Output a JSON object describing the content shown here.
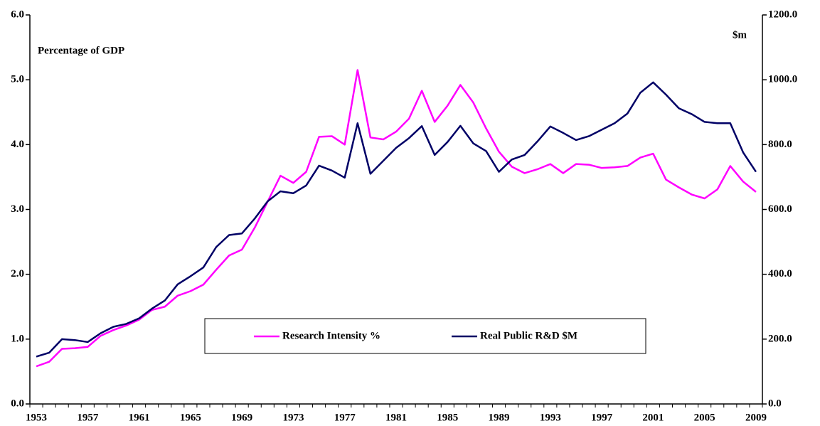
{
  "chart_data": {
    "type": "line",
    "left_axis_label": "Percentage of GDP",
    "right_axis_label": "$m",
    "categories": [
      "1953",
      null,
      null,
      null,
      "1957",
      null,
      null,
      null,
      "1961",
      null,
      null,
      null,
      "1965",
      null,
      null,
      null,
      "1969",
      null,
      null,
      null,
      "1973",
      null,
      null,
      null,
      "1977",
      null,
      null,
      null,
      "1981",
      null,
      null,
      null,
      "1985",
      null,
      null,
      null,
      "1989",
      null,
      null,
      null,
      "1993",
      null,
      null,
      null,
      "1997",
      null,
      null,
      null,
      "2001",
      null,
      null,
      null,
      "2005",
      null,
      null,
      null,
      "2009"
    ],
    "ylim": [
      0,
      6
    ],
    "yticks": [
      {
        "value": 0,
        "label": "0.0"
      },
      {
        "value": 1,
        "label": "1.0"
      },
      {
        "value": 2,
        "label": "2.0"
      },
      {
        "value": 3,
        "label": "3.0"
      },
      {
        "value": 4,
        "label": "4.0"
      },
      {
        "value": 5,
        "label": "5.0"
      },
      {
        "value": 6,
        "label": "6.0"
      }
    ],
    "y2lim": [
      0,
      1200
    ],
    "y2ticks": [
      {
        "value": 0,
        "label": "0.0"
      },
      {
        "value": 200,
        "label": "200.0"
      },
      {
        "value": 400,
        "label": "400.0"
      },
      {
        "value": 600,
        "label": "600.0"
      },
      {
        "value": 800,
        "label": "800.0"
      },
      {
        "value": 1000,
        "label": "1000.0"
      },
      {
        "value": 1200,
        "label": "1200.0"
      }
    ],
    "series": [
      {
        "name": "Research Intensity %",
        "color": "#ff00ff",
        "axis": "y",
        "values": [
          0.58,
          0.65,
          0.85,
          0.86,
          0.88,
          1.05,
          1.14,
          1.21,
          1.3,
          1.45,
          1.5,
          1.67,
          1.74,
          1.84,
          2.07,
          2.29,
          2.38,
          2.72,
          3.12,
          3.52,
          3.41,
          3.58,
          4.12,
          4.13,
          4.0,
          5.15,
          4.11,
          4.08,
          4.2,
          4.4,
          4.83,
          4.35,
          4.6,
          4.92,
          4.65,
          4.25,
          3.89,
          3.66,
          3.56,
          3.62,
          3.7,
          3.56,
          3.7,
          3.69,
          3.64,
          3.65,
          3.67,
          3.8,
          3.86,
          3.46,
          3.34,
          3.23,
          3.17,
          3.31,
          3.67,
          3.43,
          3.27
        ]
      },
      {
        "name": "Real Public R&D $M",
        "color": "#000066",
        "axis": "y2",
        "values": [
          146,
          158,
          200,
          197,
          191,
          218,
          238,
          247,
          264,
          294,
          319,
          369,
          394,
          421,
          484,
          521,
          526,
          572,
          625,
          656,
          650,
          674,
          735,
          720,
          698,
          866,
          710,
          750,
          790,
          820,
          857,
          768,
          808,
          858,
          804,
          780,
          716,
          754,
          768,
          810,
          856,
          836,
          814,
          826,
          846,
          866,
          896,
          960,
          992,
          954,
          912,
          894,
          870,
          866,
          866,
          776,
          716
        ]
      }
    ]
  }
}
